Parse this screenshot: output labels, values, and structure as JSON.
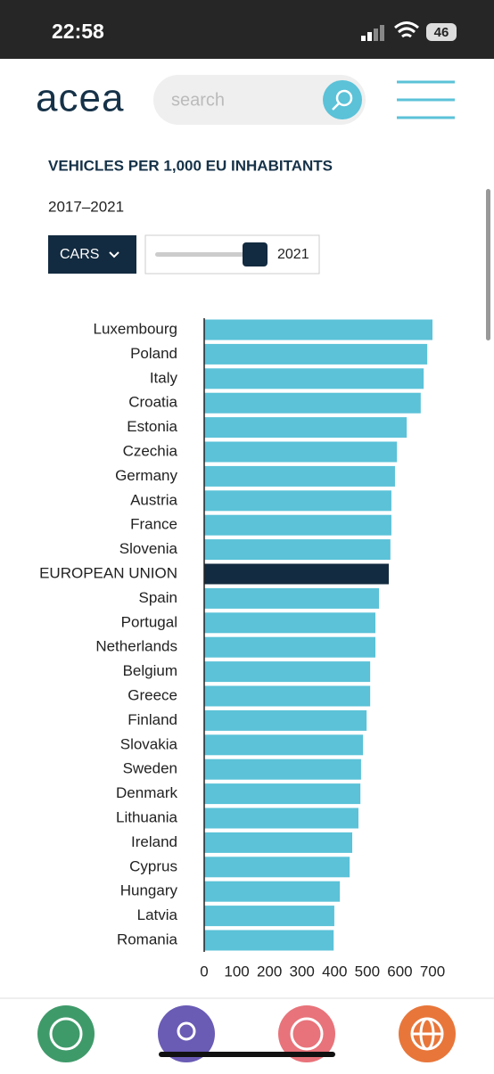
{
  "status_bar": {
    "time": "22:58",
    "battery": "46"
  },
  "header": {
    "logo": "acea",
    "search_placeholder": "search"
  },
  "controls": {
    "dropdown": "CARS",
    "slider_label": "2021"
  },
  "chart_data": {
    "type": "bar",
    "orientation": "horizontal",
    "title": "VEHICLES PER 1,000 EU INHABITANTS",
    "subtitle": "2017–2021",
    "categories": [
      "Luxembourg",
      "Poland",
      "Italy",
      "Croatia",
      "Estonia",
      "Czechia",
      "Germany",
      "Austria",
      "France",
      "Slovenia",
      "EUROPEAN UNION",
      "Spain",
      "Portugal",
      "Netherlands",
      "Belgium",
      "Greece",
      "Finland",
      "Slovakia",
      "Sweden",
      "Denmark",
      "Lithuania",
      "Ireland",
      "Cyprus",
      "Hungary",
      "Latvia",
      "Romania"
    ],
    "values": [
      700,
      684,
      673,
      664,
      621,
      591,
      585,
      574,
      574,
      571,
      566,
      536,
      525,
      525,
      509,
      509,
      498,
      487,
      481,
      479,
      473,
      454,
      446,
      416,
      399,
      397
    ],
    "colors": [
      "#5bc2d8",
      "#5bc2d8",
      "#5bc2d8",
      "#5bc2d8",
      "#5bc2d8",
      "#5bc2d8",
      "#5bc2d8",
      "#5bc2d8",
      "#5bc2d8",
      "#5bc2d8",
      "#132b40",
      "#5bc2d8",
      "#5bc2d8",
      "#5bc2d8",
      "#5bc2d8",
      "#5bc2d8",
      "#5bc2d8",
      "#5bc2d8",
      "#5bc2d8",
      "#5bc2d8",
      "#5bc2d8",
      "#5bc2d8",
      "#5bc2d8",
      "#5bc2d8",
      "#5bc2d8",
      "#5bc2d8"
    ],
    "xlim": [
      0,
      700
    ],
    "xticks": [
      0,
      100,
      200,
      300,
      400,
      500,
      600,
      700
    ]
  }
}
